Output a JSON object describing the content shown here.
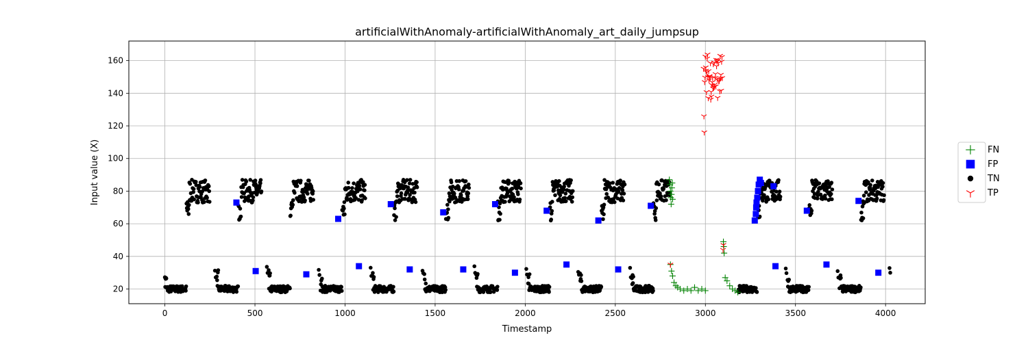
{
  "chart_data": {
    "type": "scatter",
    "title": "artificialWithAnomaly-artificialWithAnomaly_art_daily_jumpsup",
    "xlabel": "Timestamp",
    "ylabel": "Input value (X)",
    "xlim": [
      -200,
      4220
    ],
    "ylim": [
      11,
      172
    ],
    "xticks": [
      0,
      500,
      1000,
      1500,
      2000,
      2500,
      3000,
      3500,
      4000
    ],
    "yticks": [
      20,
      40,
      60,
      80,
      100,
      120,
      140,
      160
    ],
    "grid": true,
    "legend_position": "right",
    "period": 288,
    "series": [
      {
        "name": "FN",
        "marker": "plus",
        "color": "#008000",
        "points": [
          [
            2800,
            87
          ],
          [
            2804,
            84
          ],
          [
            2806,
            80
          ],
          [
            2808,
            76
          ],
          [
            2810,
            72
          ],
          [
            2812,
            78
          ],
          [
            2814,
            82
          ],
          [
            2816,
            85
          ],
          [
            2818,
            75
          ],
          [
            2806,
            35
          ],
          [
            2812,
            31
          ],
          [
            2818,
            28
          ],
          [
            2826,
            24
          ],
          [
            2836,
            22
          ],
          [
            2846,
            21
          ],
          [
            2860,
            20
          ],
          [
            2880,
            19
          ],
          [
            2900,
            20
          ],
          [
            2920,
            19
          ],
          [
            2940,
            21
          ],
          [
            2960,
            19
          ],
          [
            2980,
            20
          ],
          [
            3000,
            19
          ],
          [
            3100,
            49
          ],
          [
            3102,
            46
          ],
          [
            3104,
            42
          ],
          [
            3110,
            27
          ],
          [
            3120,
            25
          ],
          [
            3135,
            22
          ],
          [
            3150,
            20
          ],
          [
            3165,
            19
          ],
          [
            3180,
            18
          ]
        ]
      },
      {
        "name": "FP",
        "marker": "square",
        "color": "#0000ff",
        "points": [
          [
            397,
            73
          ],
          [
            1254,
            72
          ],
          [
            1545,
            67
          ],
          [
            1833,
            72
          ],
          [
            2119,
            68
          ],
          [
            2406,
            62
          ],
          [
            2697,
            71
          ],
          [
            3274,
            62
          ],
          [
            3280,
            66
          ],
          [
            3282,
            70
          ],
          [
            3284,
            73
          ],
          [
            3288,
            76
          ],
          [
            3292,
            80
          ],
          [
            3296,
            84
          ],
          [
            3302,
            87
          ],
          [
            3308,
            85
          ],
          [
            3378,
            83
          ],
          [
            3563,
            68
          ],
          [
            3850,
            74
          ],
          [
            504,
            31
          ],
          [
            785,
            29
          ],
          [
            962,
            63
          ],
          [
            1077,
            34
          ],
          [
            1359,
            32
          ],
          [
            1656,
            32
          ],
          [
            1943,
            30
          ],
          [
            2229,
            35
          ],
          [
            2516,
            32
          ],
          [
            3389,
            34
          ],
          [
            3672,
            35
          ],
          [
            3960,
            30
          ]
        ]
      },
      {
        "name": "TN",
        "marker": "dot",
        "color": "#000000",
        "points": []
      },
      {
        "name": "TP",
        "marker": "tri",
        "color": "#ff0000",
        "points": [
          [
            2806,
            35
          ],
          [
            3100,
            47
          ],
          [
            3098,
            44
          ]
        ]
      }
    ]
  }
}
